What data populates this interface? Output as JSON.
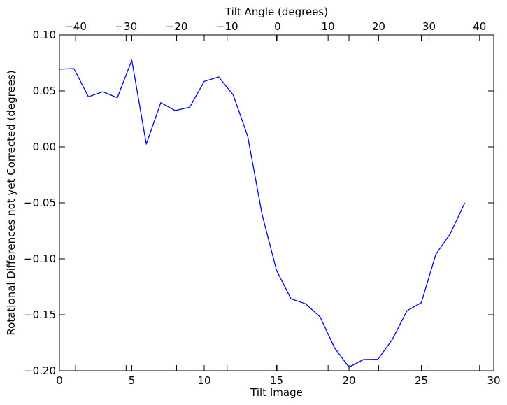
{
  "chart_data": {
    "type": "line",
    "title": "",
    "xlabel": "Tilt Image",
    "ylabel": "Rotational Differences not yet Corrected (degrees)",
    "top_xlabel": "Tilt Angle (degrees)",
    "xlim": [
      0,
      30
    ],
    "ylim": [
      -0.2,
      0.1
    ],
    "top_xlim": [
      -43.2,
      42.8
    ],
    "x_ticks": [
      0,
      5,
      10,
      15,
      20,
      25,
      30
    ],
    "x_tick_labels": [
      "0",
      "5",
      "10",
      "15",
      "20",
      "25",
      "30"
    ],
    "y_ticks": [
      0.1,
      0.05,
      0.0,
      -0.05,
      -0.1,
      -0.15,
      -0.2
    ],
    "y_tick_labels": [
      "0.10",
      "0.05",
      "0.00",
      "−0.05",
      "−0.10",
      "−0.15",
      "−0.20"
    ],
    "top_x_ticks": [
      -40,
      -30,
      -20,
      -10,
      0,
      10,
      20,
      30,
      40
    ],
    "top_x_tick_labels": [
      "−40",
      "−30",
      "−20",
      "−10",
      "0",
      "10",
      "20",
      "30",
      "40"
    ],
    "grid": false,
    "line_color": "#0000ff",
    "x": [
      0,
      1,
      2,
      3,
      4,
      5,
      6,
      7,
      8,
      9,
      10,
      11,
      12,
      13,
      14,
      15,
      16,
      17,
      18,
      19,
      20,
      21,
      22,
      23,
      24,
      25,
      26,
      27,
      28
    ],
    "values": [
      0.0695,
      0.07,
      0.0448,
      0.0493,
      0.044,
      0.0775,
      0.0025,
      0.0395,
      0.0325,
      0.0355,
      0.0585,
      0.0625,
      0.0465,
      0.0098,
      -0.0605,
      -0.1105,
      -0.1358,
      -0.1402,
      -0.1518,
      -0.1795,
      -0.1968,
      -0.19,
      -0.1898,
      -0.172,
      -0.1465,
      -0.1392,
      -0.096,
      -0.0775,
      -0.05
    ]
  }
}
